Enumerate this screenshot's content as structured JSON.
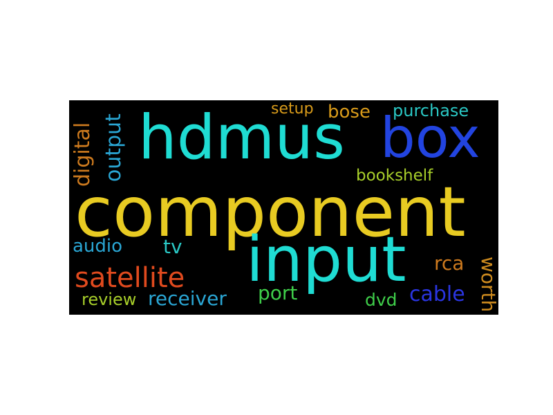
{
  "words": {
    "hdmus": {
      "text": "hdmus",
      "color": "#1fdcd3"
    },
    "box": {
      "text": "box",
      "color": "#2244e0"
    },
    "component": {
      "text": "component",
      "color": "#e8cb22"
    },
    "input": {
      "text": "input",
      "color": "#1fdcd3"
    },
    "satellite": {
      "text": "satellite",
      "color": "#e04a1e"
    },
    "digital": {
      "text": "digital",
      "color": "#cd7a1e"
    },
    "output": {
      "text": "output",
      "color": "#2aa6d4"
    },
    "setup": {
      "text": "setup",
      "color": "#d99b1a"
    },
    "bose": {
      "text": "bose",
      "color": "#d99b1a"
    },
    "purchase": {
      "text": "purchase",
      "color": "#2ac7c4"
    },
    "bookshelf": {
      "text": "bookshelf",
      "color": "#a8cf2a"
    },
    "audio": {
      "text": "audio",
      "color": "#2aa6d4"
    },
    "tv": {
      "text": "tv",
      "color": "#2ac7c4"
    },
    "rca": {
      "text": "rca",
      "color": "#cd7a1e"
    },
    "worth": {
      "text": "worth",
      "color": "#cd8a1e"
    },
    "review": {
      "text": "review",
      "color": "#a8cf2a"
    },
    "receiver": {
      "text": "receiver",
      "color": "#2aa6d4"
    },
    "port": {
      "text": "port",
      "color": "#3fce4a"
    },
    "dvd": {
      "text": "dvd",
      "color": "#3fce4a"
    },
    "cable": {
      "text": "cable",
      "color": "#2a35e0"
    }
  }
}
